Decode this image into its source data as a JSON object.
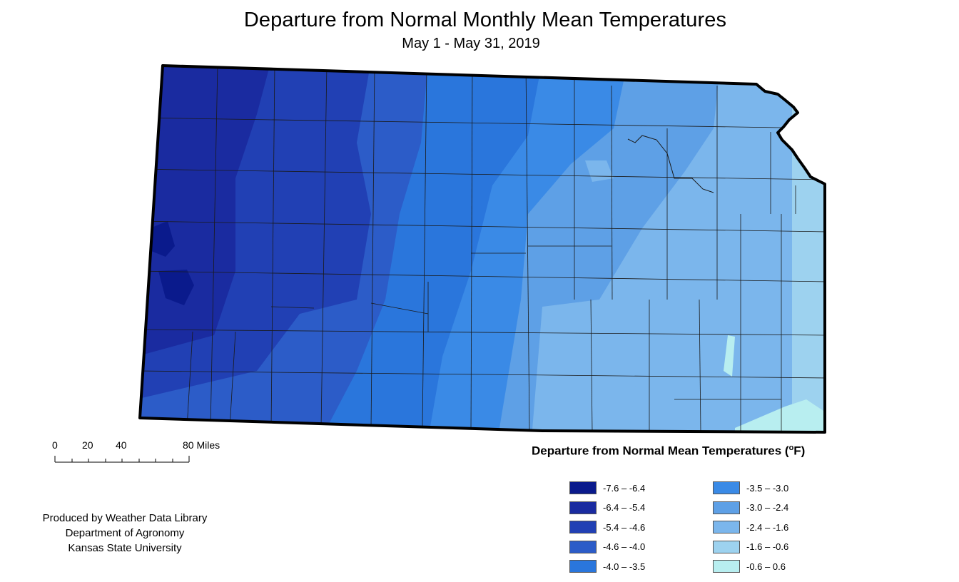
{
  "title": "Departure from Normal Monthly Mean Temperatures",
  "subtitle": "May 1 - May 31, 2019",
  "scale": {
    "labels": [
      "0",
      "20",
      "40",
      "80 Miles"
    ]
  },
  "credits": {
    "line1": "Produced by Weather Data Library",
    "line2": "Department of Agronomy",
    "line3": "Kansas State University"
  },
  "legend": {
    "title": "Departure from Normal Mean Temperatures (",
    "unit_super": "o",
    "unit_tail": "F)",
    "classes": [
      {
        "label": "-7.6 – -6.4",
        "color": "#0a1a8c"
      },
      {
        "label": "-6.4 – -5.4",
        "color": "#1a2ba0"
      },
      {
        "label": "-5.4 – -4.6",
        "color": "#2140b4"
      },
      {
        "label": "-4.6 – -4.0",
        "color": "#2c5cc8"
      },
      {
        "label": "-4.0 – -3.5",
        "color": "#2a76dc"
      },
      {
        "label": "-3.5 – -3.0",
        "color": "#3a8ae6"
      },
      {
        "label": "-3.0 – -2.4",
        "color": "#5ea0e6"
      },
      {
        "label": "-2.4 – -1.6",
        "color": "#7bb6ec"
      },
      {
        "label": "-1.6 – -0.6",
        "color": "#9dd2ef"
      },
      {
        "label": "-0.6 – 0.6",
        "color": "#b8eef0"
      }
    ]
  }
}
